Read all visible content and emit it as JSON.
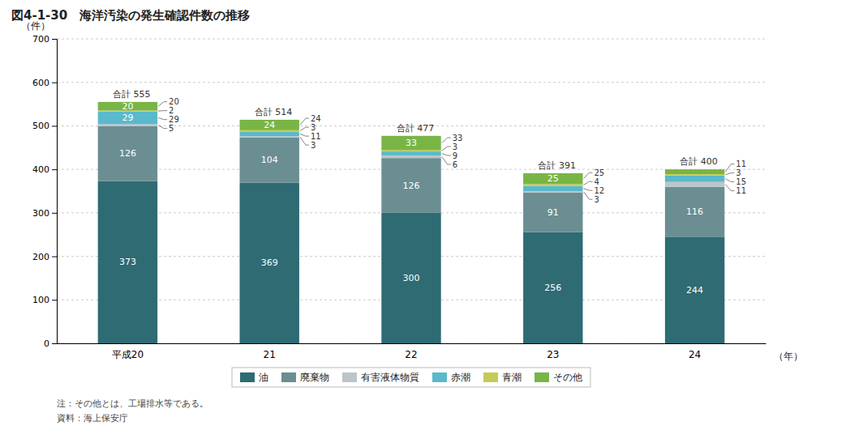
{
  "chart_data": {
    "type": "bar",
    "stacked": true,
    "title": "図4-1-30　海洋汚染の発生確認件数の推移",
    "xlabel": "（年）",
    "ylabel": "（件）",
    "categories": [
      "平成20",
      "21",
      "22",
      "23",
      "24"
    ],
    "series": [
      {
        "name": "油",
        "color": "#2e6b73",
        "values": [
          373,
          369,
          300,
          256,
          244
        ]
      },
      {
        "name": "廃棄物",
        "color": "#6b8e92",
        "values": [
          126,
          104,
          126,
          91,
          116
        ]
      },
      {
        "name": "有害液体物質",
        "color": "#bcc6c8",
        "values": [
          5,
          3,
          6,
          3,
          11
        ]
      },
      {
        "name": "赤潮",
        "color": "#5ab9ca",
        "values": [
          29,
          11,
          9,
          12,
          15
        ]
      },
      {
        "name": "青潮",
        "color": "#c5cb56",
        "values": [
          2,
          3,
          3,
          4,
          3
        ]
      },
      {
        "name": "その他",
        "color": "#79b546",
        "values": [
          20,
          24,
          33,
          25,
          11
        ]
      }
    ],
    "totals": {
      "values": [
        555,
        514,
        477,
        391,
        400
      ],
      "value_labels": [
        "合計 555",
        "合計 514",
        "合計 477",
        "合計 391",
        "合計 400"
      ]
    },
    "ylim": [
      0,
      700
    ],
    "yticks": [
      0,
      100,
      200,
      300,
      400,
      500,
      600,
      700
    ],
    "grid": true,
    "legend": "bottom",
    "data_labels": true,
    "annotations": [
      "注：その他とは、工場排水等である。",
      "資料：海上保安庁"
    ]
  }
}
